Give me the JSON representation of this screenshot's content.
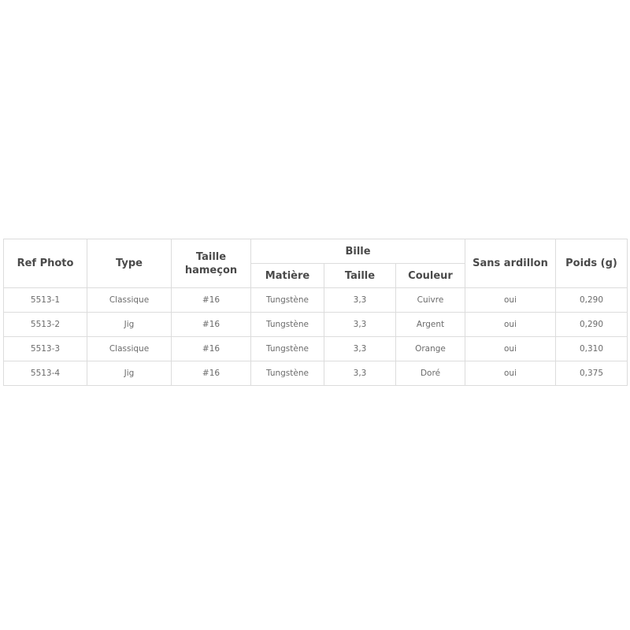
{
  "table": {
    "headers": {
      "ref_photo": "Ref Photo",
      "type": "Type",
      "taille_hamecon": "Taille hameçon",
      "bille": "Bille",
      "matiere": "Matière",
      "taille": "Taille",
      "couleur": "Couleur",
      "sans_ardillon": "Sans ardillon",
      "poids": "Poids (g)"
    },
    "rows": [
      [
        "5513-1",
        "Classique",
        "#16",
        "Tungstène",
        "3,3",
        "Cuivre",
        "oui",
        "0,290"
      ],
      [
        "5513-2",
        "Jig",
        "#16",
        "Tungstène",
        "3,3",
        "Argent",
        "oui",
        "0,290"
      ],
      [
        "5513-3",
        "Classique",
        "#16",
        "Tungstène",
        "3,3",
        "Orange",
        "oui",
        "0,310"
      ],
      [
        "5513-4",
        "Jig",
        "#16",
        "Tungstène",
        "3,3",
        "Doré",
        "oui",
        "0,375"
      ]
    ]
  }
}
